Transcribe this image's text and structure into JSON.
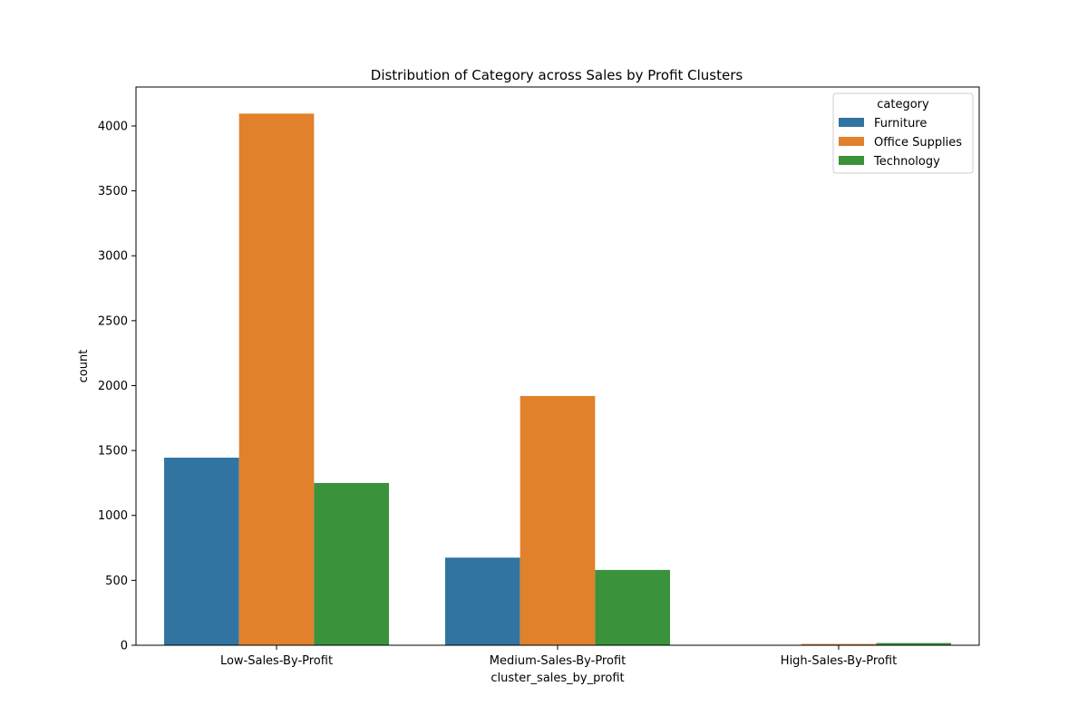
{
  "chart_data": {
    "type": "bar",
    "title": "Distribution of Category across Sales by Profit Clusters",
    "xlabel": "cluster_sales_by_profit",
    "ylabel": "count",
    "categories": [
      "Low-Sales-By-Profit",
      "Medium-Sales-By-Profit",
      "High-Sales-By-Profit"
    ],
    "series": [
      {
        "name": "Furniture",
        "values": [
          1445,
          675,
          1
        ],
        "color": "#3274a1"
      },
      {
        "name": "Office Supplies",
        "values": [
          4095,
          1920,
          10
        ],
        "color": "#e1812c"
      },
      {
        "name": "Technology",
        "values": [
          1250,
          580,
          17
        ],
        "color": "#3a923a"
      }
    ],
    "ylim": [
      0,
      4300
    ],
    "yticks": [
      0,
      500,
      1000,
      1500,
      2000,
      2500,
      3000,
      3500,
      4000
    ],
    "grid": false,
    "legend": {
      "title": "category",
      "placement": "top-right"
    }
  }
}
